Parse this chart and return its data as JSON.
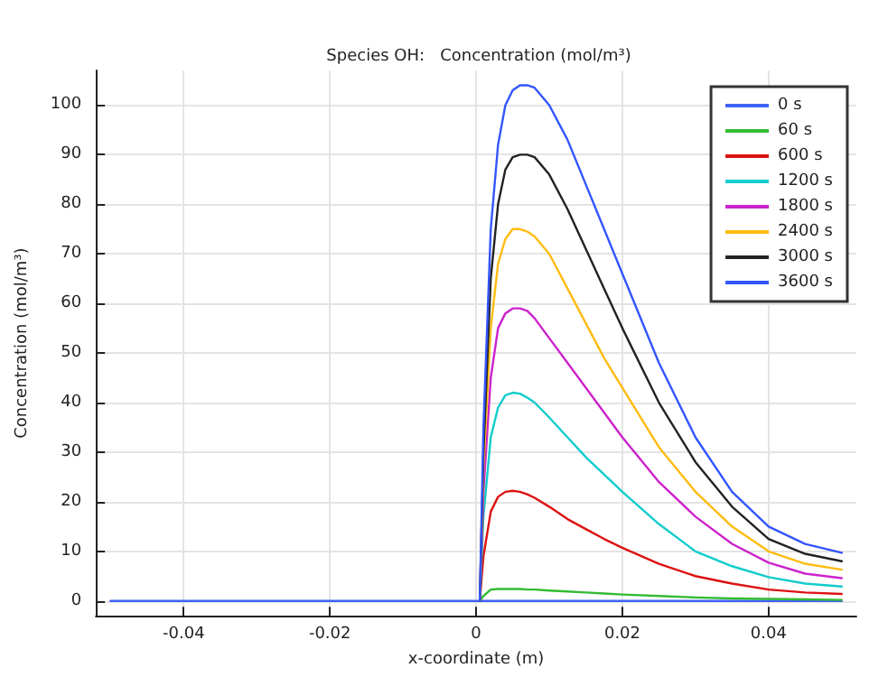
{
  "chart_data": {
    "type": "line",
    "title": "Species OH:   Concentration (mol/m³)",
    "xlabel": "x-coordinate (m)",
    "ylabel": "Concentration (mol/m³)",
    "x": [
      -0.05,
      0,
      0.0005,
      0.001,
      0.002,
      0.003,
      0.004,
      0.005,
      0.006,
      0.007,
      0.008,
      0.01,
      0.0125,
      0.015,
      0.0175,
      0.02,
      0.025,
      0.03,
      0.035,
      0.04,
      0.045,
      0.05
    ],
    "series": [
      {
        "name": "0 s",
        "color": "#4062f5",
        "values": [
          0,
          0,
          0,
          0,
          0,
          0,
          0,
          0,
          0,
          0,
          0,
          0,
          0,
          0,
          0,
          0,
          0,
          0,
          0,
          0,
          0,
          0
        ]
      },
      {
        "name": "60 s",
        "color": "#33bb33",
        "values": [
          null,
          null,
          0,
          1,
          2.3,
          2.4,
          2.4,
          2.4,
          2.4,
          2.3,
          2.3,
          2.1,
          1.9,
          1.7,
          1.5,
          1.3,
          1,
          0.7,
          0.5,
          0.4,
          0.3,
          0.2
        ]
      },
      {
        "name": "600 s",
        "color": "#dd1111",
        "values": [
          null,
          null,
          0,
          9,
          18,
          21,
          22,
          22.2,
          22,
          21.5,
          20.8,
          19,
          16.5,
          14.5,
          12.5,
          10.7,
          7.5,
          5,
          3.5,
          2.3,
          1.7,
          1.4
        ]
      },
      {
        "name": "1200 s",
        "color": "#11cccc",
        "values": [
          null,
          null,
          0,
          17,
          33,
          39,
          41.5,
          42,
          41.8,
          41,
          40,
          37,
          33,
          29,
          25.5,
          22,
          15.5,
          10,
          7,
          4.8,
          3.5,
          2.9
        ]
      },
      {
        "name": "1800 s",
        "color": "#cc22cc",
        "values": [
          null,
          null,
          0,
          22,
          45,
          55,
          58,
          59,
          59,
          58.5,
          57,
          53,
          48,
          43,
          38,
          33,
          24,
          17,
          11.5,
          7.7,
          5.5,
          4.6
        ]
      },
      {
        "name": "2400 s",
        "color": "#ffbb11",
        "values": [
          null,
          null,
          0,
          27,
          55,
          68,
          73,
          75,
          75,
          74.5,
          73.5,
          70,
          63,
          56,
          49,
          43,
          31,
          22,
          15,
          10,
          7.5,
          6.3
        ]
      },
      {
        "name": "3000 s",
        "color": "#222222",
        "values": [
          null,
          null,
          0,
          30,
          65,
          80,
          87,
          89.5,
          90,
          90,
          89.5,
          86,
          79,
          71,
          63,
          55,
          40,
          28,
          19,
          12.5,
          9.5,
          8
        ]
      },
      {
        "name": "3600 s",
        "color": "#3355ff",
        "values": [
          null,
          null,
          0,
          35,
          75,
          92,
          100,
          103,
          104,
          104,
          103.5,
          100,
          93,
          84,
          75,
          66,
          48,
          33,
          22,
          15,
          11.5,
          9.7
        ]
      }
    ],
    "xlim": [
      -0.052,
      0.052
    ],
    "xticks": [
      -0.04,
      -0.02,
      0,
      0.02,
      0.04
    ],
    "ylim": [
      -3,
      107
    ],
    "yticks": [
      0,
      10,
      20,
      30,
      40,
      50,
      60,
      70,
      80,
      90,
      100
    ],
    "grid": true,
    "legend": "top right",
    "line_style": "solid",
    "marker": "none"
  }
}
